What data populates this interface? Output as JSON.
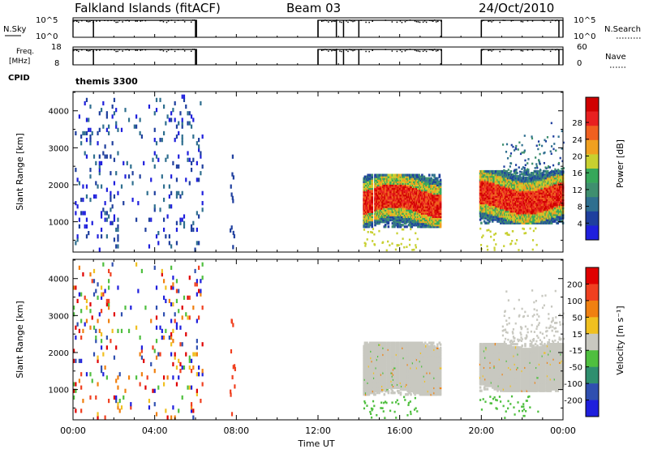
{
  "header": {
    "station": "Falkland Islands (fitACF)",
    "beam": "Beam 03",
    "date": "24/Oct/2010"
  },
  "cpid_label": "CPID",
  "cpid_value": "themis 3300",
  "chart_data": [
    {
      "type": "line",
      "name": "noise-panel",
      "left_label": "N.Sky",
      "right_label": "N.Search",
      "left_ticks": [
        "10^5",
        "10^0"
      ],
      "right_ticks": [
        "10^5",
        "10^0"
      ],
      "active_intervals_hours": [
        [
          0,
          6.05
        ],
        [
          12.0,
          18.05
        ],
        [
          20.0,
          24.0
        ]
      ],
      "gap_marks_hours": [
        1.0,
        6.0,
        12.0,
        12.9,
        13.25,
        14.0,
        20.0,
        23.8
      ]
    },
    {
      "type": "line",
      "name": "frequency-panel",
      "left_label": "Freq. [MHz]",
      "right_label": "Nave",
      "left_ticks": [
        "18",
        "8"
      ],
      "right_ticks": [
        "60",
        "0"
      ],
      "active_intervals_hours": [
        [
          0,
          6.05
        ],
        [
          12.0,
          18.05
        ],
        [
          20.0,
          24.0
        ]
      ],
      "gap_marks_hours": [
        1.0,
        6.0,
        12.0,
        12.9,
        13.25,
        14.0,
        20.0,
        23.8
      ]
    },
    {
      "type": "heatmap",
      "name": "power-panel",
      "ylabel": "Slant Range [km]",
      "yticks": [
        1000,
        2000,
        3000,
        4000
      ],
      "ylim": [
        180,
        4520
      ],
      "xlim_hours": [
        0,
        24
      ],
      "colorbar": {
        "label": "Power [dB]",
        "ticks": [
          "4",
          "8",
          "12",
          "16",
          "20",
          "24",
          "28"
        ],
        "colors": [
          "#1f1fdd",
          "#1f3f9e",
          "#2f6f8f",
          "#3f8f6f",
          "#37a85a",
          "#c8d030",
          "#f0a020",
          "#f06020",
          "#e82020",
          "#d00000"
        ]
      },
      "regions": [
        {
          "t": [
            14.2,
            18.0
          ],
          "range": [
            900,
            2300
          ],
          "core_dB": 24,
          "edge_dB": 8
        },
        {
          "t": [
            19.9,
            24.0
          ],
          "range": [
            1000,
            2400
          ],
          "core_dB": 26,
          "edge_dB": 8
        }
      ]
    },
    {
      "type": "heatmap",
      "name": "velocity-panel",
      "ylabel": "Slant Range [km]",
      "yticks": [
        1000,
        2000,
        3000,
        4000
      ],
      "ylim": [
        180,
        4520
      ],
      "xlim_hours": [
        0,
        24
      ],
      "colorbar": {
        "label": "Velocity [m s⁻¹]",
        "ticks": [
          "200",
          "100",
          "50",
          "15",
          "-15",
          "-50",
          "-100",
          "-200"
        ],
        "colors": [
          "#1f1fdd",
          "#2f4fb0",
          "#2f8f6f",
          "#4fbf3f",
          "#c8c8c0",
          "#f0c020",
          "#f08010",
          "#f04020",
          "#e00000"
        ]
      },
      "regions": [
        {
          "t": [
            14.2,
            18.0
          ],
          "range": [
            900,
            2300
          ],
          "velocity": 0
        },
        {
          "t": [
            19.9,
            24.0
          ],
          "range": [
            1000,
            2300
          ],
          "velocity": 0
        }
      ]
    }
  ],
  "xaxis": {
    "label": "Time UT",
    "ticks": [
      "00:00",
      "04:00",
      "08:00",
      "12:00",
      "16:00",
      "20:00",
      "00:00"
    ]
  }
}
